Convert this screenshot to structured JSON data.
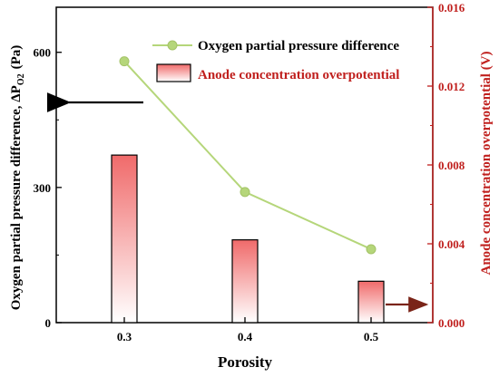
{
  "chart_data": {
    "type": "bar+line",
    "categories": [
      "0.3",
      "0.4",
      "0.5"
    ],
    "xlabel": "Porosity",
    "left_axis": {
      "label_main": "Oxygen partial pressure difference, ΔP",
      "label_sub": "O2",
      "label_unit": "(Pa)",
      "ylim": [
        0,
        700
      ],
      "ticks": [
        "0",
        "300",
        "600"
      ],
      "tick_values": [
        0,
        300,
        600
      ],
      "color": "#000000"
    },
    "right_axis": {
      "label": "Anode concentration overpotential  (V)",
      "ylim": [
        0,
        0.016
      ],
      "ticks": [
        "0.000",
        "0.004",
        "0.008",
        "0.012",
        "0.016"
      ],
      "tick_values": [
        0,
        0.004,
        0.008,
        0.012,
        0.016
      ],
      "color": "#c0201e"
    },
    "series": [
      {
        "name": "Oxygen partial pressure difference",
        "type": "line",
        "axis": "left",
        "values": [
          580,
          290,
          163
        ],
        "color": "#b5d67a"
      },
      {
        "name": "Anode  concentration overpotential",
        "type": "bar",
        "axis": "right",
        "values": [
          0.0085,
          0.0042,
          0.0021
        ],
        "color": "#f06a6a"
      }
    ],
    "legend": {
      "placement": "top-right"
    },
    "grid": false
  }
}
